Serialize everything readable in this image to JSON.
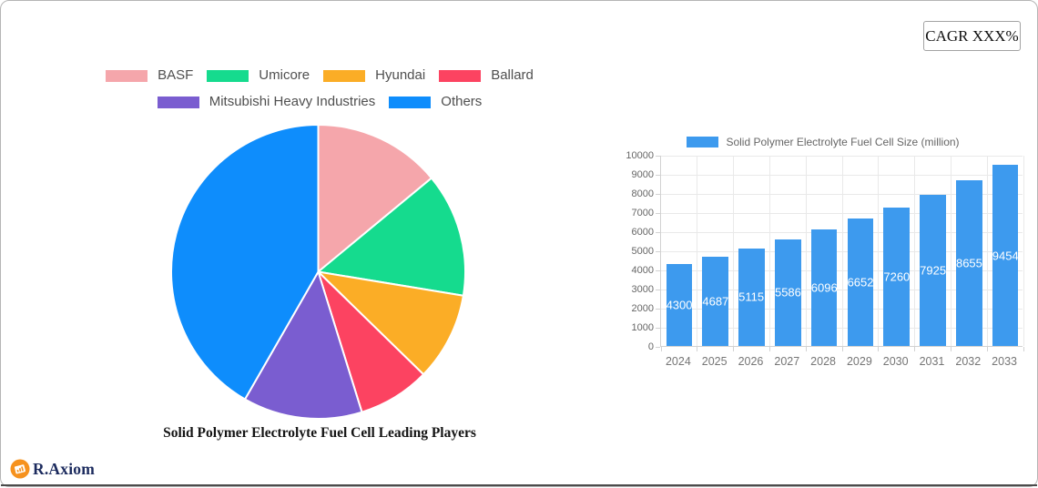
{
  "cagr_badge": {
    "label": "CAGR XXX%"
  },
  "brand": {
    "name": "R.Axiom",
    "icon_color": "#f6921e",
    "text_color": "#1c2b5e"
  },
  "chart_data": [
    {
      "type": "pie",
      "title": "Solid Polymer Electrolyte Fuel Cell Leading Players",
      "labels": [
        "BASF",
        "Umicore",
        "Hyundai",
        "Ballard",
        "Mitsubishi Heavy Industries",
        "Others"
      ],
      "values": [
        14.0,
        13.6,
        9.7,
        7.9,
        13.1,
        41.7
      ],
      "values_note": "percent share, estimated from slice angles",
      "colors": [
        "#f5a6ab",
        "#15db8e",
        "#fbad26",
        "#fc4361",
        "#7a5dd0",
        "#0e8dfc"
      ],
      "legend_rows": [
        [
          "BASF",
          "Umicore",
          "Hyundai",
          "Ballard"
        ],
        [
          "Mitsubishi Heavy Industries",
          "Others"
        ]
      ],
      "start_angle_deg": 0,
      "direction": "clockwise",
      "legend_position": "top"
    },
    {
      "type": "bar",
      "legend_label": "Solid Polymer Electrolyte Fuel Cell Size (million)",
      "categories": [
        "2024",
        "2025",
        "2026",
        "2027",
        "2028",
        "2029",
        "2030",
        "2031",
        "2032",
        "2033"
      ],
      "values": [
        4300,
        4687.6,
        5115.0,
        5586.0,
        6096.9,
        6652.9,
        7260.6,
        7925.9,
        8655.1,
        9454.8
      ],
      "value_labels": [
        "4300",
        "4687.6",
        "5115.0",
        "5586.0",
        "6096.9",
        "6652.9",
        "7260.6",
        "7925.9",
        "8655.1",
        "9454.8"
      ],
      "bar_color": "#3d9aee",
      "xlabel": "",
      "ylabel": "",
      "ylim": [
        0,
        10000
      ],
      "ytick_labels": [
        "0",
        "1000",
        "2000",
        "3000",
        "4000",
        "5000",
        "6000",
        "7000",
        "8000",
        "9000",
        "10000"
      ],
      "grid": true,
      "legend_position": "top"
    }
  ]
}
